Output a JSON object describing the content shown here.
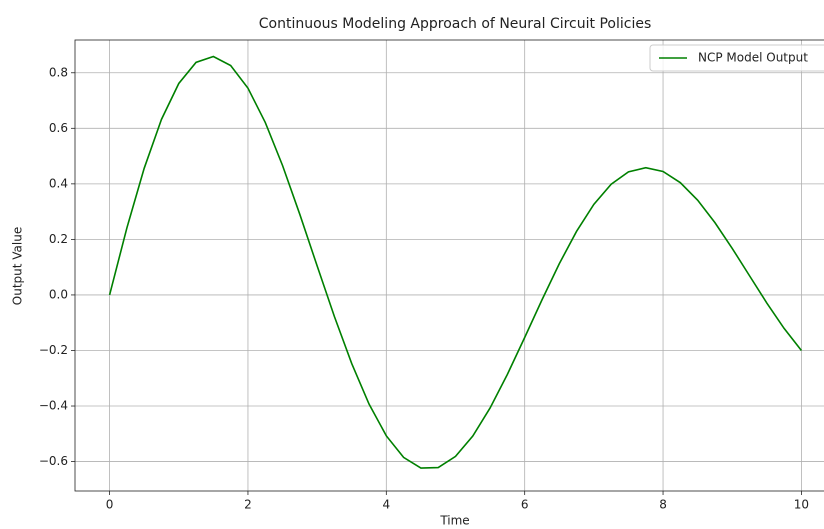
{
  "chart_data": {
    "type": "line",
    "title": "Continuous Modeling Approach of Neural Circuit Policies",
    "x_label": "Time",
    "y_label": "Output Value",
    "x": [
      0,
      0.25,
      0.5,
      0.75,
      1,
      1.25,
      1.5,
      1.75,
      2,
      2.25,
      2.5,
      2.75,
      3,
      3.25,
      3.5,
      3.75,
      4,
      4.25,
      4.5,
      4.75,
      5,
      5.25,
      5.5,
      5.75,
      6,
      6.25,
      6.5,
      6.75,
      7,
      7.25,
      7.5,
      7.75,
      8,
      8.25,
      8.5,
      8.75,
      9,
      9.25,
      9.5,
      9.75,
      10
    ],
    "series": [
      {
        "name": "NCP Model Output",
        "color": "#008000",
        "values": [
          0,
          0.2413,
          0.456,
          0.6323,
          0.7614,
          0.8375,
          0.8585,
          0.8261,
          0.7445,
          0.6213,
          0.4661,
          0.2899,
          0.1045,
          -0.0782,
          -0.2472,
          -0.3929,
          -0.5073,
          -0.5851,
          -0.6233,
          -0.6215,
          -0.5816,
          -0.5081,
          -0.407,
          -0.286,
          -0.1533,
          -0.0178,
          0.1123,
          0.2291,
          0.3263,
          0.3986,
          0.4431,
          0.4582,
          0.4445,
          0.4043,
          0.3413,
          0.2604,
          0.1676,
          0.0691,
          -0.0291,
          -0.1205,
          -0.2001
        ]
      }
    ],
    "xlim": [
      -0.5,
      10.5
    ],
    "xticks": [
      0,
      2,
      4,
      6,
      8,
      10
    ],
    "ylim": [
      -0.706,
      0.918
    ],
    "yticks": [
      {
        "value": -0.6,
        "label": "−0.6"
      },
      {
        "value": -0.4,
        "label": "−0.4"
      },
      {
        "value": -0.2,
        "label": "−0.2"
      },
      {
        "value": 0,
        "label": "0.0"
      },
      {
        "value": 0.2,
        "label": "0.2"
      },
      {
        "value": 0.4,
        "label": "0.4"
      },
      {
        "value": 0.6,
        "label": "0.6"
      },
      {
        "value": 0.8,
        "label": "0.8"
      }
    ],
    "grid": true,
    "legend": "upper right"
  }
}
